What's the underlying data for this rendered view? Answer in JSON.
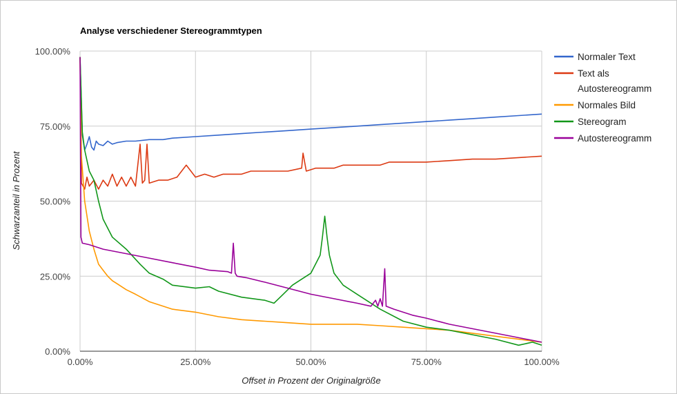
{
  "chart_data": {
    "type": "line",
    "title": "Analyse verschiedener Stereogrammtypen",
    "xlabel": "Offset in Prozent der Originalgröße",
    "ylabel": "Schwarzanteil in Prozent",
    "xlim": [
      0,
      100
    ],
    "ylim": [
      0,
      100
    ],
    "x_ticks": [
      "0.00%",
      "25.00%",
      "50.00%",
      "75.00%",
      "100.00%"
    ],
    "y_ticks": [
      "0.00%",
      "25.00%",
      "50.00%",
      "75.00%",
      "100.00%"
    ],
    "grid": true,
    "legend": "right",
    "series": [
      {
        "name": "Normaler Text",
        "color": "#3366cc",
        "points": [
          [
            0,
            98
          ],
          [
            0.5,
            72
          ],
          [
            1,
            67
          ],
          [
            1.5,
            69
          ],
          [
            2,
            71.5
          ],
          [
            2.5,
            68
          ],
          [
            3,
            67
          ],
          [
            3.5,
            70
          ],
          [
            4,
            69
          ],
          [
            5,
            68.5
          ],
          [
            6,
            70
          ],
          [
            7,
            69
          ],
          [
            8,
            69.5
          ],
          [
            10,
            70
          ],
          [
            12,
            70
          ],
          [
            15,
            70.5
          ],
          [
            18,
            70.5
          ],
          [
            20,
            71
          ],
          [
            25,
            71.5
          ],
          [
            30,
            72
          ],
          [
            35,
            72.5
          ],
          [
            40,
            73
          ],
          [
            45,
            73.5
          ],
          [
            50,
            74
          ],
          [
            55,
            74.5
          ],
          [
            60,
            75
          ],
          [
            65,
            75.5
          ],
          [
            70,
            76
          ],
          [
            75,
            76.5
          ],
          [
            80,
            77
          ],
          [
            85,
            77.5
          ],
          [
            90,
            78
          ],
          [
            95,
            78.5
          ],
          [
            100,
            79
          ]
        ]
      },
      {
        "name": "Text als Autostereogramm",
        "color": "#dc3912",
        "points": [
          [
            0,
            98
          ],
          [
            0.3,
            56
          ],
          [
            1,
            54
          ],
          [
            1.5,
            58
          ],
          [
            2,
            55
          ],
          [
            3,
            57
          ],
          [
            4,
            54
          ],
          [
            5,
            57
          ],
          [
            6,
            55
          ],
          [
            7,
            59
          ],
          [
            8,
            55
          ],
          [
            9,
            58
          ],
          [
            10,
            55
          ],
          [
            11,
            58
          ],
          [
            12,
            55
          ],
          [
            13,
            69
          ],
          [
            13.5,
            56
          ],
          [
            14,
            57
          ],
          [
            14.5,
            69
          ],
          [
            15,
            56
          ],
          [
            17,
            57
          ],
          [
            19,
            57
          ],
          [
            21,
            58
          ],
          [
            23,
            62
          ],
          [
            25,
            58
          ],
          [
            27,
            59
          ],
          [
            29,
            58
          ],
          [
            31,
            59
          ],
          [
            33,
            59
          ],
          [
            35,
            59
          ],
          [
            37,
            60
          ],
          [
            39,
            60
          ],
          [
            41,
            60
          ],
          [
            43,
            60
          ],
          [
            45,
            60
          ],
          [
            48,
            61
          ],
          [
            48.3,
            66
          ],
          [
            49,
            60
          ],
          [
            51,
            61
          ],
          [
            53,
            61
          ],
          [
            55,
            61
          ],
          [
            57,
            62
          ],
          [
            59,
            62
          ],
          [
            61,
            62
          ],
          [
            63,
            62
          ],
          [
            65,
            62
          ],
          [
            67,
            63
          ],
          [
            70,
            63
          ],
          [
            75,
            63
          ],
          [
            80,
            63.5
          ],
          [
            85,
            64
          ],
          [
            90,
            64
          ],
          [
            95,
            64.5
          ],
          [
            100,
            65
          ]
        ]
      },
      {
        "name": "Normales Bild",
        "color": "#ff9900",
        "points": [
          [
            0,
            98
          ],
          [
            0.3,
            65
          ],
          [
            1,
            50
          ],
          [
            2,
            40
          ],
          [
            3,
            34
          ],
          [
            4,
            29
          ],
          [
            5,
            27
          ],
          [
            6,
            25
          ],
          [
            7,
            23.5
          ],
          [
            8,
            22.5
          ],
          [
            10,
            20.5
          ],
          [
            12,
            19
          ],
          [
            15,
            16.5
          ],
          [
            18,
            15
          ],
          [
            20,
            14
          ],
          [
            25,
            13
          ],
          [
            30,
            11.5
          ],
          [
            35,
            10.5
          ],
          [
            40,
            10
          ],
          [
            45,
            9.5
          ],
          [
            50,
            9
          ],
          [
            55,
            9
          ],
          [
            60,
            9
          ],
          [
            65,
            8.5
          ],
          [
            70,
            8
          ],
          [
            75,
            7.5
          ],
          [
            80,
            7
          ],
          [
            85,
            6
          ],
          [
            90,
            5
          ],
          [
            95,
            4
          ],
          [
            100,
            3
          ]
        ]
      },
      {
        "name": "Stereogram",
        "color": "#109618",
        "points": [
          [
            0,
            98
          ],
          [
            0.5,
            73
          ],
          [
            1,
            67
          ],
          [
            2,
            60
          ],
          [
            3,
            57
          ],
          [
            4,
            50
          ],
          [
            5,
            44
          ],
          [
            7,
            38
          ],
          [
            10,
            34
          ],
          [
            13,
            29
          ],
          [
            15,
            26
          ],
          [
            18,
            24
          ],
          [
            20,
            22
          ],
          [
            25,
            21
          ],
          [
            28,
            21.5
          ],
          [
            30,
            20
          ],
          [
            35,
            18
          ],
          [
            40,
            17
          ],
          [
            42,
            16
          ],
          [
            44,
            19
          ],
          [
            46,
            22
          ],
          [
            48,
            24
          ],
          [
            50,
            26
          ],
          [
            52,
            32
          ],
          [
            52.5,
            38
          ],
          [
            53,
            45
          ],
          [
            53.5,
            38
          ],
          [
            54,
            32
          ],
          [
            55,
            26
          ],
          [
            57,
            22
          ],
          [
            60,
            19
          ],
          [
            63,
            16
          ],
          [
            65,
            14
          ],
          [
            70,
            10
          ],
          [
            75,
            8
          ],
          [
            80,
            7
          ],
          [
            85,
            5.5
          ],
          [
            90,
            4
          ],
          [
            95,
            2
          ],
          [
            98,
            3
          ],
          [
            100,
            2
          ]
        ]
      },
      {
        "name": "Autostereogramm",
        "color": "#990099",
        "points": [
          [
            0,
            98
          ],
          [
            0.2,
            38
          ],
          [
            0.5,
            36
          ],
          [
            2,
            35.5
          ],
          [
            5,
            34
          ],
          [
            10,
            32.5
          ],
          [
            15,
            31
          ],
          [
            20,
            29.5
          ],
          [
            25,
            28
          ],
          [
            28,
            27
          ],
          [
            32,
            26.5
          ],
          [
            32.8,
            26
          ],
          [
            33.2,
            36
          ],
          [
            33.6,
            26
          ],
          [
            34,
            25
          ],
          [
            36,
            24.5
          ],
          [
            40,
            23
          ],
          [
            45,
            21
          ],
          [
            50,
            19
          ],
          [
            55,
            17.5
          ],
          [
            60,
            16
          ],
          [
            63,
            15
          ],
          [
            64,
            17
          ],
          [
            64.5,
            15
          ],
          [
            65,
            17.5
          ],
          [
            65.5,
            15
          ],
          [
            66,
            27.5
          ],
          [
            66.3,
            15
          ],
          [
            68,
            14
          ],
          [
            72,
            12
          ],
          [
            75,
            11
          ],
          [
            80,
            9
          ],
          [
            85,
            7.5
          ],
          [
            90,
            6
          ],
          [
            95,
            4.5
          ],
          [
            100,
            3
          ]
        ]
      }
    ]
  }
}
